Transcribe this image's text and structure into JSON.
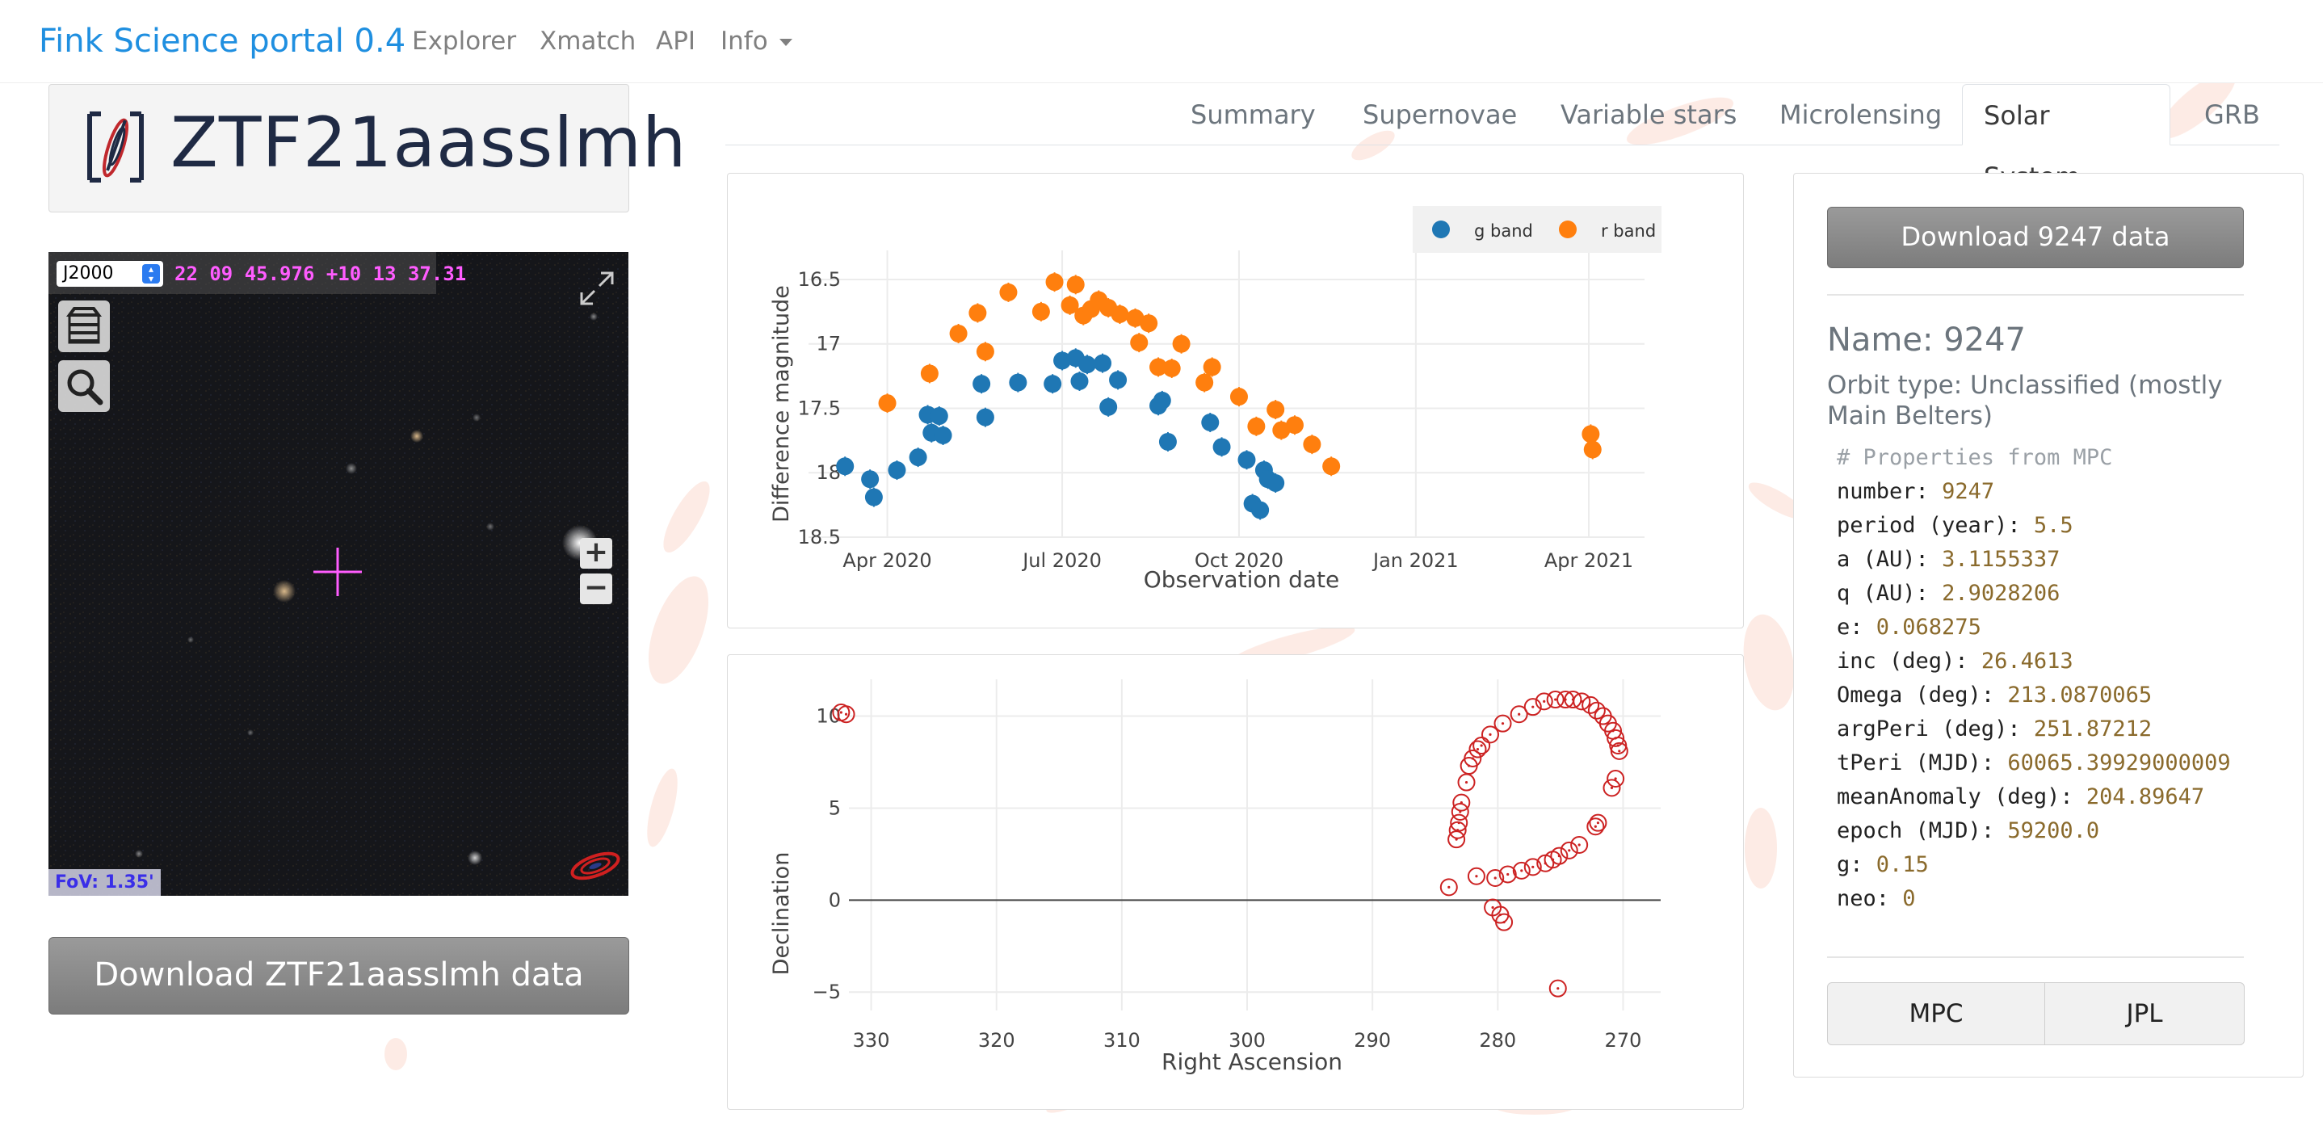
{
  "navbar": {
    "brand": "Fink Science portal 0.4",
    "links": [
      "Explorer",
      "Xmatch",
      "API",
      "Info"
    ]
  },
  "object": {
    "name": "ZTF21aasslmh",
    "download_label": "Download ZTF21aasslmh data"
  },
  "aladin": {
    "frame": "J2000",
    "coords": "22 09 45.976 +10 13 37.31",
    "fov": "FoV: 1.35'",
    "zoom_in": "+",
    "zoom_out": "−"
  },
  "tabs": [
    {
      "label": "Summary",
      "active": false
    },
    {
      "label": "Supernovae",
      "active": false
    },
    {
      "label": "Variable stars",
      "active": false
    },
    {
      "label": "Microlensing",
      "active": false
    },
    {
      "label": "Solar System",
      "active": true
    },
    {
      "label": "GRB",
      "active": false
    }
  ],
  "solar_system": {
    "download_label": "Download 9247 data",
    "name": "Name: 9247",
    "orbit_type": "Orbit type: Unclassified (mostly Main Belters)",
    "properties_comment": "# Properties from MPC",
    "properties": [
      {
        "key": "number",
        "value": "9247"
      },
      {
        "key": "period (year)",
        "value": "5.5"
      },
      {
        "key": "a (AU)",
        "value": "3.1155337"
      },
      {
        "key": "q (AU)",
        "value": "2.9028206"
      },
      {
        "key": "e",
        "value": "0.068275"
      },
      {
        "key": "inc (deg)",
        "value": "26.4613"
      },
      {
        "key": "Omega (deg)",
        "value": "213.0870065"
      },
      {
        "key": "argPeri (deg)",
        "value": "251.87212"
      },
      {
        "key": "tPeri (MJD)",
        "value": "60065.39929000009"
      },
      {
        "key": "meanAnomaly (deg)",
        "value": "204.89647"
      },
      {
        "key": "epoch (MJD)",
        "value": "59200.0"
      },
      {
        "key": "g",
        "value": "0.15"
      },
      {
        "key": "neo",
        "value": "0"
      }
    ],
    "mpc_label": "MPC",
    "jpl_label": "JPL"
  },
  "chart_data": [
    {
      "type": "scatter",
      "xlabel": "Observation date",
      "ylabel": "Difference magnitude",
      "x_ticks": [
        "Apr 2020",
        "Jul 2020",
        "Oct 2020",
        "Jan 2021",
        "Apr 2021"
      ],
      "y_ticks": [
        "16.5",
        "17",
        "17.5",
        "18",
        "18.5"
      ],
      "ylim": [
        18.5,
        16.4
      ],
      "y_reversed": true,
      "legend": "top-right",
      "colors": {
        "g band": "#1f77b4",
        "r band": "#ff7f0e"
      },
      "series": [
        {
          "name": "g band",
          "points": [
            [
              "2020-03-10",
              17.95
            ],
            [
              "2020-03-23",
              18.05
            ],
            [
              "2020-03-25",
              18.19
            ],
            [
              "2020-04-06",
              17.98
            ],
            [
              "2020-04-17",
              17.88
            ],
            [
              "2020-04-22",
              17.55
            ],
            [
              "2020-04-24",
              17.69
            ],
            [
              "2020-04-28",
              17.56
            ],
            [
              "2020-04-30",
              17.71
            ],
            [
              "2020-05-20",
              17.31
            ],
            [
              "2020-05-22",
              17.57
            ],
            [
              "2020-06-08",
              17.3
            ],
            [
              "2020-06-26",
              17.31
            ],
            [
              "2020-07-01",
              17.13
            ],
            [
              "2020-07-08",
              17.11
            ],
            [
              "2020-07-10",
              17.29
            ],
            [
              "2020-07-14",
              17.16
            ],
            [
              "2020-07-22",
              17.15
            ],
            [
              "2020-07-25",
              17.49
            ],
            [
              "2020-07-30",
              17.28
            ],
            [
              "2020-08-20",
              17.48
            ],
            [
              "2020-08-22",
              17.44
            ],
            [
              "2020-08-25",
              17.76
            ],
            [
              "2020-09-16",
              17.61
            ],
            [
              "2020-09-22",
              17.8
            ],
            [
              "2020-10-05",
              17.9
            ],
            [
              "2020-10-08",
              18.24
            ],
            [
              "2020-10-12",
              18.29
            ],
            [
              "2020-10-14",
              17.98
            ],
            [
              "2020-10-16",
              18.05
            ],
            [
              "2020-10-20",
              18.08
            ]
          ]
        },
        {
          "name": "r band",
          "points": [
            [
              "2020-04-01",
              17.46
            ],
            [
              "2020-04-23",
              17.23
            ],
            [
              "2020-05-08",
              16.92
            ],
            [
              "2020-05-18",
              16.76
            ],
            [
              "2020-05-22",
              17.06
            ],
            [
              "2020-06-03",
              16.6
            ],
            [
              "2020-06-20",
              16.75
            ],
            [
              "2020-06-27",
              16.52
            ],
            [
              "2020-07-05",
              16.7
            ],
            [
              "2020-07-08",
              16.54
            ],
            [
              "2020-07-12",
              16.78
            ],
            [
              "2020-07-16",
              16.73
            ],
            [
              "2020-07-20",
              16.66
            ],
            [
              "2020-07-25",
              16.72
            ],
            [
              "2020-07-31",
              16.77
            ],
            [
              "2020-08-08",
              16.8
            ],
            [
              "2020-08-10",
              16.99
            ],
            [
              "2020-08-15",
              16.84
            ],
            [
              "2020-08-20",
              17.18
            ],
            [
              "2020-08-27",
              17.19
            ],
            [
              "2020-09-01",
              17.0
            ],
            [
              "2020-09-13",
              17.3
            ],
            [
              "2020-09-17",
              17.18
            ],
            [
              "2020-10-01",
              17.41
            ],
            [
              "2020-10-10",
              17.64
            ],
            [
              "2020-10-20",
              17.51
            ],
            [
              "2020-10-23",
              17.67
            ],
            [
              "2020-10-30",
              17.63
            ],
            [
              "2020-11-08",
              17.78
            ],
            [
              "2020-11-18",
              17.95
            ],
            [
              "2021-04-02",
              17.7
            ],
            [
              "2021-04-03",
              17.82
            ]
          ]
        }
      ]
    },
    {
      "type": "scatter",
      "xlabel": "Right Ascension",
      "ylabel": "Declination",
      "x_ticks": [
        "330",
        "320",
        "310",
        "300",
        "290",
        "280",
        "270"
      ],
      "y_ticks": [
        "10",
        "5",
        "0",
        "−5"
      ],
      "xlim": [
        335,
        267
      ],
      "ylim": [
        -6,
        12
      ],
      "x_reversed": true,
      "marker_color": "#cc2222",
      "points": [
        [
          332.4,
          10.2
        ],
        [
          332.0,
          10.1
        ],
        [
          283.9,
          0.7
        ],
        [
          283.3,
          3.3
        ],
        [
          283.2,
          3.8
        ],
        [
          283.1,
          4.2
        ],
        [
          283.0,
          4.8
        ],
        [
          282.9,
          5.3
        ],
        [
          282.5,
          6.4
        ],
        [
          282.3,
          7.3
        ],
        [
          282.0,
          7.7
        ],
        [
          281.6,
          8.2
        ],
        [
          281.3,
          8.4
        ],
        [
          280.6,
          9.0
        ],
        [
          279.6,
          9.6
        ],
        [
          278.3,
          10.1
        ],
        [
          277.2,
          10.5
        ],
        [
          276.3,
          10.8
        ],
        [
          275.4,
          10.9
        ],
        [
          274.6,
          10.9
        ],
        [
          274.0,
          10.9
        ],
        [
          273.3,
          10.8
        ],
        [
          272.6,
          10.6
        ],
        [
          272.1,
          10.3
        ],
        [
          271.6,
          10.0
        ],
        [
          271.2,
          9.6
        ],
        [
          270.8,
          9.2
        ],
        [
          270.6,
          8.8
        ],
        [
          270.4,
          8.4
        ],
        [
          270.3,
          8.1
        ],
        [
          270.6,
          6.6
        ],
        [
          270.9,
          6.1
        ],
        [
          272.0,
          4.2
        ],
        [
          272.2,
          4.0
        ],
        [
          273.5,
          3.0
        ],
        [
          274.3,
          2.7
        ],
        [
          275.1,
          2.4
        ],
        [
          275.6,
          2.2
        ],
        [
          276.2,
          2.0
        ],
        [
          277.2,
          1.8
        ],
        [
          278.1,
          1.6
        ],
        [
          279.2,
          1.4
        ],
        [
          280.2,
          1.2
        ],
        [
          281.7,
          1.3
        ],
        [
          280.4,
          -0.4
        ],
        [
          279.8,
          -0.8
        ],
        [
          279.5,
          -1.2
        ],
        [
          275.2,
          -4.8
        ]
      ]
    }
  ]
}
